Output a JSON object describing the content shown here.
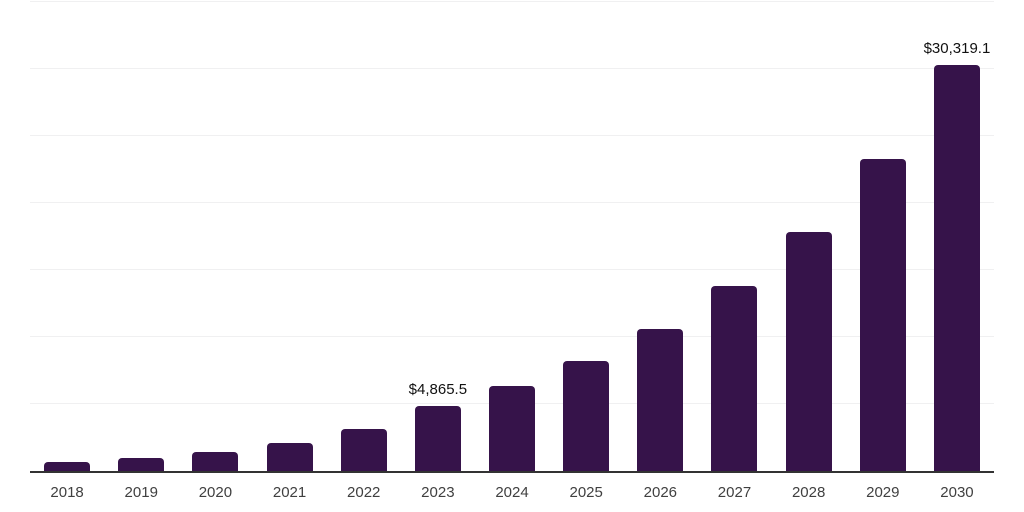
{
  "chart_data": {
    "type": "bar",
    "title": "",
    "xlabel": "",
    "ylabel": "",
    "categories": [
      "2018",
      "2019",
      "2020",
      "2021",
      "2022",
      "2023",
      "2024",
      "2025",
      "2026",
      "2027",
      "2028",
      "2029",
      "2030"
    ],
    "values": [
      650,
      950,
      1430,
      2080,
      3150,
      4865.5,
      6350,
      8210,
      10600,
      13800,
      17850,
      23250,
      30319.1
    ],
    "data_labels": {
      "2023": "$4,865.5",
      "2030": "$30,319.1"
    },
    "ylim": [
      0,
      35000
    ],
    "gridline_step": 5000,
    "grid": "horizontal-only",
    "legend": "none",
    "y_axis_tick_labels": "none",
    "colors": {
      "bar": "#36134a",
      "gridline": "#f0f0f1",
      "axis_line": "#333333",
      "x_tick_label": "#404040",
      "data_label": "#111111",
      "background": "#ffffff"
    }
  }
}
